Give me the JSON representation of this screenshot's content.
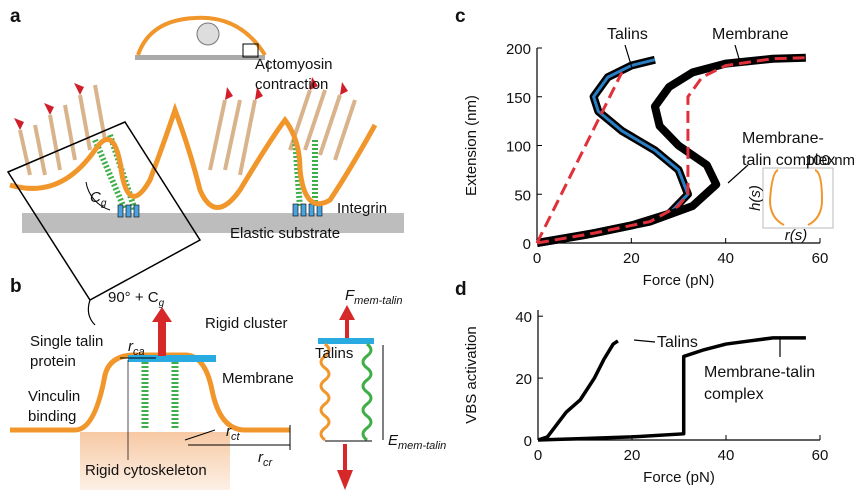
{
  "panel_a": {
    "label": "a",
    "actomyosin": "Actomyosin contraction",
    "integrin": "Integrin",
    "substrate": "Elastic substrate",
    "angle": {
      "symbol": "C",
      "subscript": "g"
    }
  },
  "panel_b": {
    "label": "b",
    "rotation": {
      "text": "90° + C",
      "subscript": "g"
    },
    "single_talin": "Single talin protein",
    "vinculin": "Vinculin binding",
    "r_ca": {
      "symbol": "r",
      "subscript": "ca"
    },
    "rigid_cluster": "Rigid cluster",
    "membrane": "Membrane",
    "r_ct": {
      "symbol": "r",
      "subscript": "ct"
    },
    "r_cr": {
      "symbol": "r",
      "subscript": "cr"
    },
    "cytoskeleton": "Rigid cytoskeleton",
    "force": {
      "symbol": "F",
      "subscript": "mem-talin"
    },
    "talins": "Talins",
    "extension": {
      "symbol": "E",
      "subscript": "mem-talin"
    }
  },
  "chart_data": [
    {
      "type": "line",
      "label": "c",
      "x_label": "Force (pN)",
      "y_label": "Extension (nm)",
      "xlim": [
        0,
        60
      ],
      "ylim": [
        0,
        200
      ],
      "xticks": [
        0,
        20,
        40,
        60
      ],
      "yticks": [
        0,
        50,
        100,
        150,
        200
      ],
      "inset": {
        "y_label": "h(s)",
        "x_label": "r(s)",
        "scale": "100 nm"
      },
      "series": [
        {
          "name": "Talins",
          "color": "#2a7fc4",
          "outline": "#000000",
          "x": [
            0,
            10,
            20,
            28,
            32,
            30,
            25,
            18,
            13,
            12,
            15,
            20,
            25
          ],
          "values": [
            0,
            8,
            18,
            30,
            50,
            75,
            95,
            115,
            135,
            150,
            170,
            182,
            188
          ]
        },
        {
          "name": "Membrane",
          "color": "#000000",
          "x": [
            0,
            12,
            24,
            33,
            38,
            36,
            30,
            26,
            25,
            28,
            33,
            40,
            50,
            57
          ],
          "values": [
            0,
            10,
            22,
            38,
            60,
            80,
            100,
            120,
            140,
            160,
            175,
            184,
            189,
            190
          ]
        },
        {
          "name": "Membrane-talin complex",
          "color": "#e0303a",
          "dashed": true,
          "x": [
            0,
            12,
            24,
            30,
            32,
            32,
            32,
            35,
            40,
            50,
            57
          ],
          "values": [
            0,
            10,
            22,
            38,
            50,
            100,
            150,
            170,
            182,
            189,
            190
          ]
        },
        {
          "color": "#e0303a",
          "dashed": true,
          "x": [
            0,
            18
          ],
          "values": [
            0,
            175
          ]
        }
      ]
    },
    {
      "type": "line",
      "label": "d",
      "x_label": "Force (pN)",
      "y_label": "VBS activation",
      "xlim": [
        0,
        60
      ],
      "ylim": [
        0,
        42
      ],
      "xticks": [
        0,
        20,
        40,
        60
      ],
      "yticks": [
        0,
        20,
        40
      ],
      "series": [
        {
          "name": "Talins",
          "color": "#000000",
          "x": [
            0,
            2,
            4,
            6,
            9,
            12,
            14,
            16,
            17
          ],
          "values": [
            0,
            1,
            5,
            9,
            13,
            20,
            26,
            31,
            32
          ]
        },
        {
          "name": "Membrane-talin complex",
          "color": "#000000",
          "x": [
            0,
            10,
            20,
            31,
            31,
            35,
            40,
            45,
            50,
            57
          ],
          "values": [
            0,
            0.5,
            1,
            2,
            27,
            29,
            31,
            32,
            33,
            33
          ]
        }
      ]
    }
  ]
}
